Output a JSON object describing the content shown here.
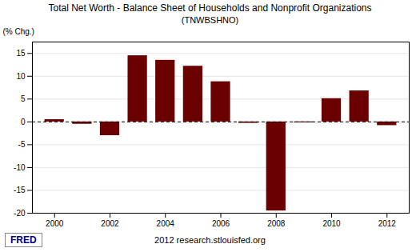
{
  "chart_data": {
    "type": "bar",
    "title": "Total Net Worth - Balance Sheet of Households and Nonprofit Organizations",
    "subtitle": "(TNWBSHNO)",
    "ylabel": "(% Chg.)",
    "x": [
      2000,
      2001,
      2002,
      2003,
      2004,
      2005,
      2006,
      2007,
      2008,
      2009,
      2010,
      2011,
      2012
    ],
    "values": [
      0.5,
      -0.5,
      -3.0,
      14.5,
      13.5,
      12.2,
      8.8,
      -0.3,
      -19.5,
      -0.2,
      5.1,
      6.8,
      -0.8
    ],
    "color": "#6B0000",
    "xlim": [
      1999.2,
      2012.8
    ],
    "xticks": [
      2000,
      2002,
      2004,
      2006,
      2008,
      2010,
      2012
    ],
    "ylim": [
      -20,
      17.5
    ],
    "yticks": [
      -20,
      -15,
      -10,
      -5,
      0,
      5,
      10,
      15
    ],
    "grid": true,
    "annotations": [
      "FRED",
      "2012 research.stlouisfed.org"
    ]
  }
}
